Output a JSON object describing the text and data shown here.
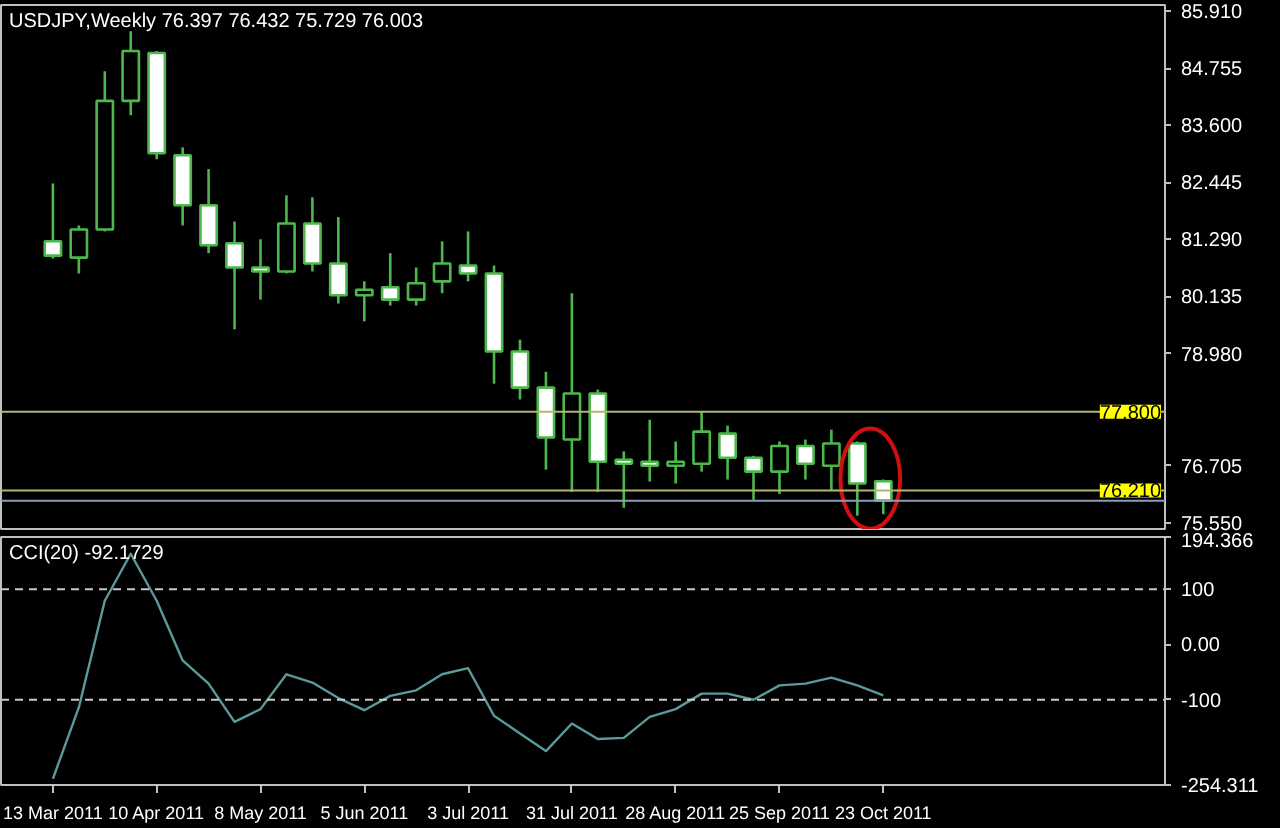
{
  "chart_data": [
    {
      "type": "candlestick",
      "title": "USDJPY,Weekly  76.397 76.432 75.729 76.003",
      "color": "#4cb84c",
      "x": [
        "2011-03-13",
        "2011-03-20",
        "2011-03-27",
        "2011-04-03",
        "2011-04-10",
        "2011-04-17",
        "2011-04-24",
        "2011-05-01",
        "2011-05-08",
        "2011-05-15",
        "2011-05-22",
        "2011-05-29",
        "2011-06-05",
        "2011-06-12",
        "2011-06-19",
        "2011-06-26",
        "2011-07-03",
        "2011-07-10",
        "2011-07-17",
        "2011-07-24",
        "2011-07-31",
        "2011-08-07",
        "2011-08-14",
        "2011-08-21",
        "2011-08-28",
        "2011-09-04",
        "2011-09-11",
        "2011-09-18",
        "2011-09-25",
        "2011-10-02",
        "2011-10-09",
        "2011-10-16",
        "2011-10-23"
      ],
      "ohlc": [
        [
          81.25,
          82.42,
          80.9,
          80.96
        ],
        [
          80.92,
          81.57,
          80.6,
          81.49
        ],
        [
          81.49,
          84.69,
          81.45,
          84.09
        ],
        [
          84.09,
          85.5,
          83.8,
          85.1
        ],
        [
          85.06,
          85.1,
          82.91,
          83.03
        ],
        [
          82.99,
          83.15,
          81.57,
          81.98
        ],
        [
          81.98,
          82.71,
          81.01,
          81.17
        ],
        [
          81.21,
          81.65,
          79.47,
          80.72
        ],
        [
          80.72,
          81.29,
          80.07,
          80.64
        ],
        [
          80.64,
          82.18,
          80.6,
          81.61
        ],
        [
          81.61,
          82.14,
          80.64,
          80.8
        ],
        [
          80.8,
          81.74,
          79.99,
          80.16
        ],
        [
          80.16,
          80.44,
          79.63,
          80.27
        ],
        [
          80.32,
          81.01,
          79.95,
          80.07
        ],
        [
          80.07,
          80.72,
          79.95,
          80.4
        ],
        [
          80.44,
          81.25,
          80.2,
          80.8
        ],
        [
          80.76,
          81.45,
          80.44,
          80.6
        ],
        [
          80.6,
          80.76,
          78.37,
          79.02
        ],
        [
          79.02,
          79.26,
          78.05,
          78.29
        ],
        [
          78.29,
          78.61,
          76.63,
          77.28
        ],
        [
          77.24,
          80.2,
          76.18,
          78.17
        ],
        [
          78.17,
          78.25,
          76.18,
          76.79
        ],
        [
          76.83,
          77.0,
          75.86,
          76.75
        ],
        [
          76.79,
          77.64,
          76.39,
          76.71
        ],
        [
          76.71,
          77.2,
          76.35,
          76.79
        ],
        [
          76.75,
          77.8,
          76.59,
          77.4
        ],
        [
          77.36,
          77.52,
          76.43,
          76.87
        ],
        [
          76.87,
          76.91,
          76.02,
          76.59
        ],
        [
          76.59,
          77.2,
          76.14,
          77.11
        ],
        [
          77.11,
          77.24,
          76.43,
          76.75
        ],
        [
          76.71,
          77.44,
          76.22,
          77.16
        ],
        [
          77.16,
          77.2,
          75.7,
          76.35
        ],
        [
          76.397,
          76.432,
          75.729,
          76.003
        ]
      ],
      "xlim": [
        "2011-02-27",
        "2012-01-07"
      ],
      "ylim": [
        75.43,
        86.03
      ],
      "yticks": [
        {
          "value": 85.91,
          "label": "85.910"
        },
        {
          "value": 84.755,
          "label": "84.755"
        },
        {
          "value": 83.6,
          "label": "83.600"
        },
        {
          "value": 82.445,
          "label": "82.445"
        },
        {
          "value": 81.29,
          "label": "81.290"
        },
        {
          "value": 80.135,
          "label": "80.135"
        },
        {
          "value": 78.98,
          "label": "78.980"
        },
        {
          "value": 76.705,
          "label": "76.705"
        },
        {
          "value": 75.55,
          "label": "75.550"
        }
      ],
      "ref_lines": [
        {
          "axis": "y",
          "value": 77.8,
          "label": "77.800",
          "color": "#b4b46e"
        },
        {
          "axis": "y",
          "value": 76.21,
          "label": "76.210",
          "color": "#b4b46e"
        },
        {
          "axis": "y",
          "value": 76.003,
          "label": null,
          "color": "#8c9cb4"
        }
      ],
      "tick_labels": "y"
    },
    {
      "type": "line",
      "title": "CCI(20) -92.1729",
      "x": [
        "2011-03-13",
        "2011-03-20",
        "2011-03-27",
        "2011-04-03",
        "2011-04-10",
        "2011-04-17",
        "2011-04-24",
        "2011-05-01",
        "2011-05-08",
        "2011-05-15",
        "2011-05-22",
        "2011-05-29",
        "2011-06-05",
        "2011-06-12",
        "2011-06-19",
        "2011-06-26",
        "2011-07-03",
        "2011-07-10",
        "2011-07-17",
        "2011-07-24",
        "2011-07-31",
        "2011-08-07",
        "2011-08-14",
        "2011-08-21",
        "2011-08-28",
        "2011-09-04",
        "2011-09-11",
        "2011-09-18",
        "2011-09-25",
        "2011-10-02",
        "2011-10-09",
        "2011-10-16",
        "2011-10-23"
      ],
      "series": [
        {
          "color": "#5a9a9a",
          "values": [
            -243,
            -114,
            79,
            164,
            79,
            -29,
            -71,
            -140,
            -117,
            -54,
            -69,
            -97,
            -119,
            -93,
            -83,
            -54,
            -43,
            -129,
            -161,
            -193,
            -143,
            -171,
            -169,
            -131,
            -117,
            -89,
            -89,
            -100,
            -74,
            -71,
            -60,
            -74,
            -92
          ]
        }
      ],
      "xlim": [
        "2011-02-27",
        "2012-01-07"
      ],
      "ylim": [
        -254.311,
        194.366
      ],
      "yticks": [
        {
          "value": 194.366,
          "label": "194.366"
        },
        100,
        {
          "value": 0,
          "label": "0.00"
        },
        -100,
        {
          "value": -254.311,
          "label": "-254.311"
        }
      ],
      "xticks": [
        {
          "value": "2011-03-13",
          "label": "13 Mar 2011"
        },
        {
          "value": "2011-04-10",
          "label": "10 Apr 2011"
        },
        {
          "value": "2011-05-08",
          "label": "8 May 2011"
        },
        {
          "value": "2011-06-05",
          "label": "5 Jun 2011"
        },
        {
          "value": "2011-07-03",
          "label": "3 Jul 2011"
        },
        {
          "value": "2011-07-31",
          "label": "31 Jul 2011"
        },
        {
          "value": "2011-08-28",
          "label": "28 Aug 2011"
        },
        {
          "value": "2011-09-25",
          "label": "25 Sep 2011"
        },
        {
          "value": "2011-10-23",
          "label": "23 Oct 2011"
        }
      ],
      "ref_lines": [
        {
          "axis": "y",
          "value": 100,
          "label": null,
          "color": "#c8c8c8",
          "line_style": "dashed"
        },
        {
          "axis": "y",
          "value": -100,
          "label": null,
          "color": "#c8c8c8",
          "line_style": "dashed"
        }
      ]
    }
  ]
}
